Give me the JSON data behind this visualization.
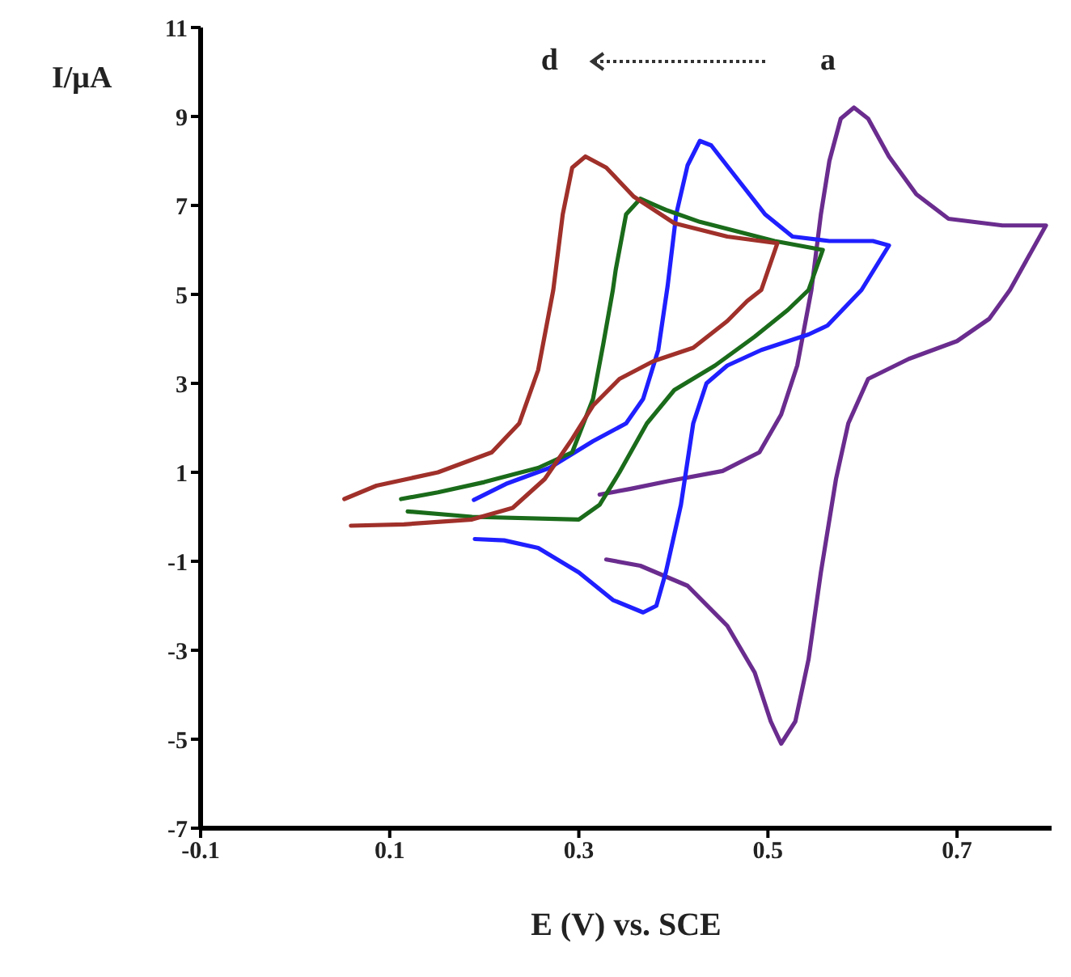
{
  "chart_data": {
    "type": "line",
    "xlabel": "E (V) vs. SCE",
    "ylabel": "I/μA",
    "annotations": [
      "d",
      "a"
    ],
    "xlim": [
      -0.1,
      0.8
    ],
    "xticks": [
      -0.1,
      0.1,
      0.3,
      0.5,
      0.7
    ],
    "ylim": [
      -7,
      11
    ],
    "yticks": [
      -7,
      -5,
      -3,
      -1,
      1,
      3,
      5,
      7,
      9,
      11
    ],
    "grid": false,
    "legend": false,
    "marker": "none",
    "line_style": "solid",
    "series": [
      {
        "color": "#6a2c8e",
        "x": [
          0.329,
          0.365,
          0.415,
          0.457,
          0.486,
          0.503,
          0.514,
          0.529,
          0.543,
          0.556,
          0.572,
          0.585,
          0.606,
          0.649,
          0.7,
          0.734,
          0.756,
          0.794,
          0.748,
          0.691,
          0.657,
          0.628,
          0.606,
          0.591,
          0.577,
          0.565,
          0.556,
          0.546,
          0.531,
          0.514,
          0.491,
          0.452,
          0.394,
          0.355,
          0.322
        ],
        "values": [
          -0.96,
          -1.1,
          -1.55,
          -2.45,
          -3.5,
          -4.6,
          -5.1,
          -4.6,
          -3.2,
          -1.25,
          0.85,
          2.1,
          3.1,
          3.55,
          3.95,
          4.45,
          5.1,
          6.55,
          6.55,
          6.7,
          7.25,
          8.1,
          8.95,
          9.2,
          8.95,
          8.0,
          6.8,
          5.1,
          3.4,
          2.3,
          1.45,
          1.03,
          0.8,
          0.63,
          0.5
        ]
      },
      {
        "color": "#1f1fff",
        "x": [
          0.19,
          0.221,
          0.257,
          0.3,
          0.336,
          0.368,
          0.382,
          0.392,
          0.408,
          0.421,
          0.435,
          0.457,
          0.493,
          0.543,
          0.563,
          0.599,
          0.628,
          0.611,
          0.565,
          0.526,
          0.497,
          0.462,
          0.44,
          0.428,
          0.415,
          0.403,
          0.394,
          0.384,
          0.368,
          0.35,
          0.315,
          0.269,
          0.223,
          0.189
        ],
        "values": [
          -0.5,
          -0.53,
          -0.7,
          -1.25,
          -1.87,
          -2.15,
          -2.0,
          -1.25,
          0.27,
          2.1,
          3.0,
          3.4,
          3.75,
          4.1,
          4.3,
          5.1,
          6.1,
          6.2,
          6.2,
          6.3,
          6.8,
          7.75,
          8.35,
          8.45,
          7.9,
          6.8,
          5.2,
          3.75,
          2.65,
          2.1,
          1.7,
          1.1,
          0.74,
          0.38
        ]
      },
      {
        "color": "#1a6b1a",
        "x": [
          0.119,
          0.187,
          0.3,
          0.322,
          0.343,
          0.372,
          0.401,
          0.444,
          0.486,
          0.521,
          0.543,
          0.558,
          0.507,
          0.428,
          0.392,
          0.365,
          0.35,
          0.339,
          0.336,
          0.326,
          0.315,
          0.293,
          0.257,
          0.2,
          0.151,
          0.112
        ],
        "values": [
          0.12,
          0.0,
          -0.06,
          0.27,
          1.0,
          2.1,
          2.85,
          3.4,
          4.05,
          4.65,
          5.1,
          6.0,
          6.2,
          6.63,
          6.9,
          7.15,
          6.8,
          5.55,
          5.1,
          3.9,
          2.65,
          1.45,
          1.1,
          0.78,
          0.55,
          0.4
        ]
      },
      {
        "color": "#a0302a",
        "x": [
          0.059,
          0.115,
          0.187,
          0.23,
          0.264,
          0.293,
          0.315,
          0.343,
          0.379,
          0.421,
          0.457,
          0.478,
          0.493,
          0.51,
          0.457,
          0.401,
          0.358,
          0.329,
          0.307,
          0.293,
          0.283,
          0.273,
          0.257,
          0.237,
          0.208,
          0.151,
          0.086,
          0.052
        ],
        "values": [
          -0.2,
          -0.17,
          -0.06,
          0.2,
          0.85,
          1.75,
          2.5,
          3.1,
          3.5,
          3.8,
          4.4,
          4.85,
          5.1,
          6.15,
          6.3,
          6.6,
          7.2,
          7.85,
          8.1,
          7.85,
          6.8,
          5.1,
          3.3,
          2.1,
          1.45,
          1.0,
          0.7,
          0.4
        ]
      }
    ]
  }
}
